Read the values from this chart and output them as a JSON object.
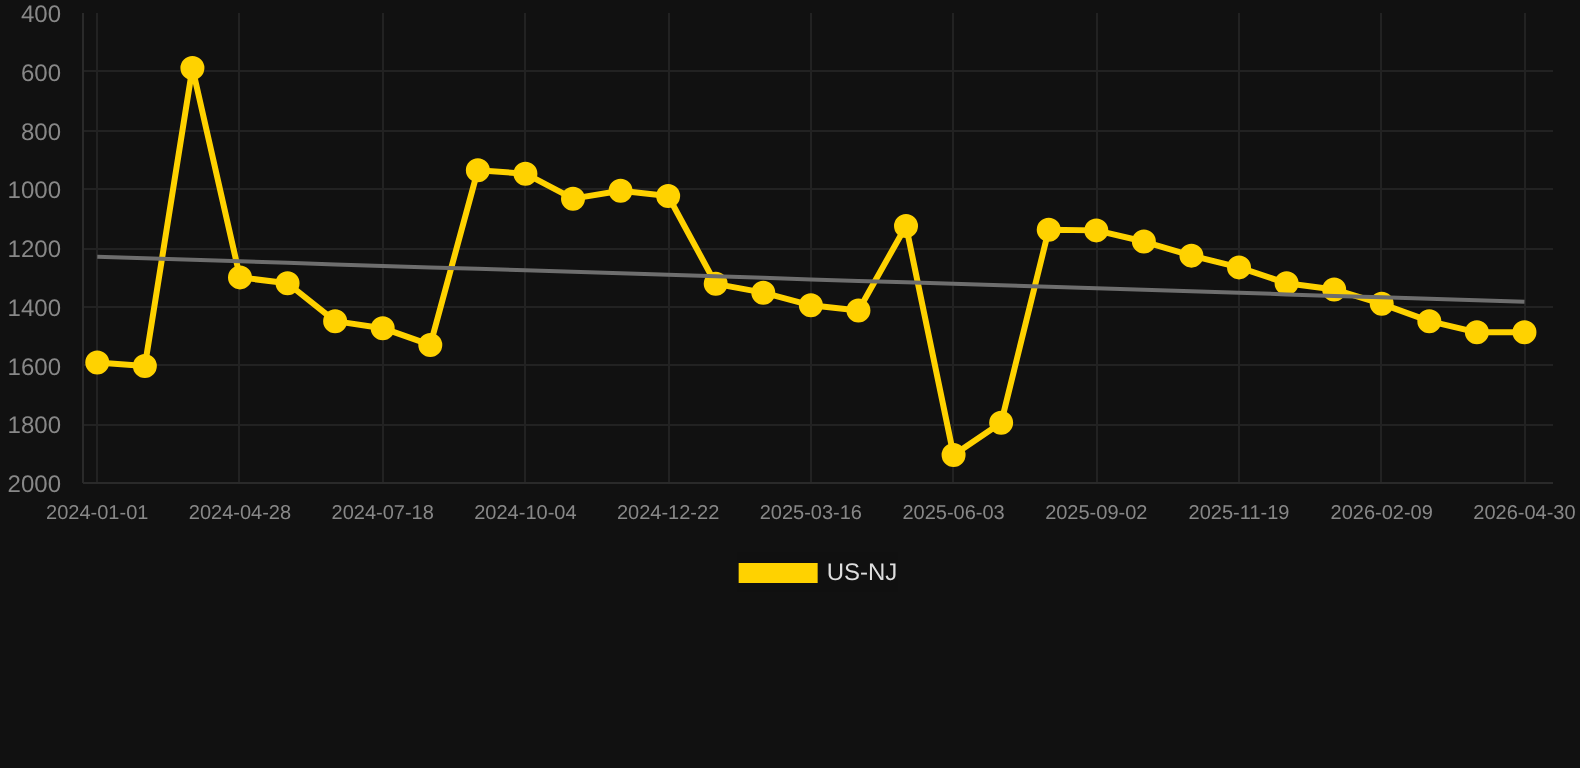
{
  "chart_data": {
    "type": "line",
    "categories": [
      "2024-01-01",
      null,
      null,
      "2024-04-28",
      null,
      null,
      "2024-07-18",
      null,
      null,
      "2024-10-04",
      null,
      null,
      "2024-12-22",
      null,
      null,
      "2025-03-16",
      null,
      null,
      "2025-06-03",
      null,
      null,
      "2025-09-02",
      null,
      null,
      "2025-11-19",
      null,
      null,
      "2026-02-09",
      null,
      null,
      "2026-04-30"
    ],
    "series": [
      {
        "name": "US-NJ",
        "color": "#ffd200",
        "marker": "circle",
        "values": [
          1590,
          1602,
          587,
          1300,
          1320,
          1449,
          1473,
          1530,
          935,
          947,
          1032,
          1005,
          1023,
          1322,
          1352,
          1395,
          1413,
          1125,
          1905,
          1795,
          1138,
          1140,
          1178,
          1226,
          1266,
          1320,
          1341,
          1390,
          1449,
          1487,
          1487
        ]
      },
      {
        "type": "line",
        "color": "#6e6e6e",
        "marker": "none",
        "values": [
          1230,
          1235,
          1240,
          1245,
          1250,
          1256,
          1261,
          1266,
          1271,
          1276,
          1281,
          1286,
          1291,
          1296,
          1301,
          1307,
          1312,
          1317,
          1322,
          1327,
          1332,
          1337,
          1342,
          1347,
          1352,
          1358,
          1363,
          1368,
          1373,
          1378,
          1383
        ]
      }
    ],
    "ylim": [
      2000,
      400
    ],
    "yticks": [
      400,
      600,
      800,
      1000,
      1200,
      1400,
      1600,
      1800,
      2000
    ],
    "grid": true,
    "legend": "bottom",
    "line_style": "solid"
  }
}
